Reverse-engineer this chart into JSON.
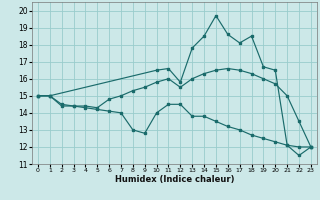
{
  "xlabel": "Humidex (Indice chaleur)",
  "bg_color": "#cce8e8",
  "grid_color": "#99cccc",
  "line_color": "#1a6b6b",
  "xlim": [
    -0.5,
    23.5
  ],
  "ylim": [
    11,
    20.5
  ],
  "yticks": [
    11,
    12,
    13,
    14,
    15,
    16,
    17,
    18,
    19,
    20
  ],
  "xticks": [
    0,
    1,
    2,
    3,
    4,
    5,
    6,
    7,
    8,
    9,
    10,
    11,
    12,
    13,
    14,
    15,
    16,
    17,
    18,
    19,
    20,
    21,
    22,
    23
  ],
  "line1_x": [
    0,
    1,
    2,
    3,
    4,
    5,
    6,
    7,
    8,
    9,
    10,
    11,
    12,
    13,
    14,
    15,
    16,
    17,
    18,
    19,
    20,
    21,
    22,
    23
  ],
  "line1_y": [
    15.0,
    15.0,
    14.4,
    14.4,
    14.3,
    14.2,
    14.1,
    14.0,
    13.0,
    12.8,
    14.0,
    14.5,
    14.5,
    13.8,
    13.8,
    13.5,
    13.2,
    13.0,
    12.7,
    12.5,
    12.3,
    12.1,
    11.5,
    12.0
  ],
  "line2_x": [
    0,
    1,
    2,
    3,
    4,
    5,
    6,
    7,
    8,
    9,
    10,
    11,
    12,
    13,
    14,
    15,
    16,
    17,
    18,
    19,
    20,
    21,
    22,
    23
  ],
  "line2_y": [
    15.0,
    15.0,
    14.5,
    14.4,
    14.4,
    14.3,
    14.8,
    15.0,
    15.3,
    15.5,
    15.8,
    16.0,
    15.5,
    16.0,
    16.3,
    16.5,
    16.6,
    16.5,
    16.3,
    16.0,
    15.7,
    15.0,
    13.5,
    12.0
  ],
  "line3_x": [
    0,
    1,
    10,
    11,
    12,
    13,
    14,
    15,
    16,
    17,
    18,
    19,
    20,
    21,
    22,
    23
  ],
  "line3_y": [
    15.0,
    15.0,
    16.5,
    16.6,
    15.8,
    17.8,
    18.5,
    19.7,
    18.6,
    18.1,
    18.5,
    16.7,
    16.5,
    12.1,
    12.0,
    12.0
  ]
}
